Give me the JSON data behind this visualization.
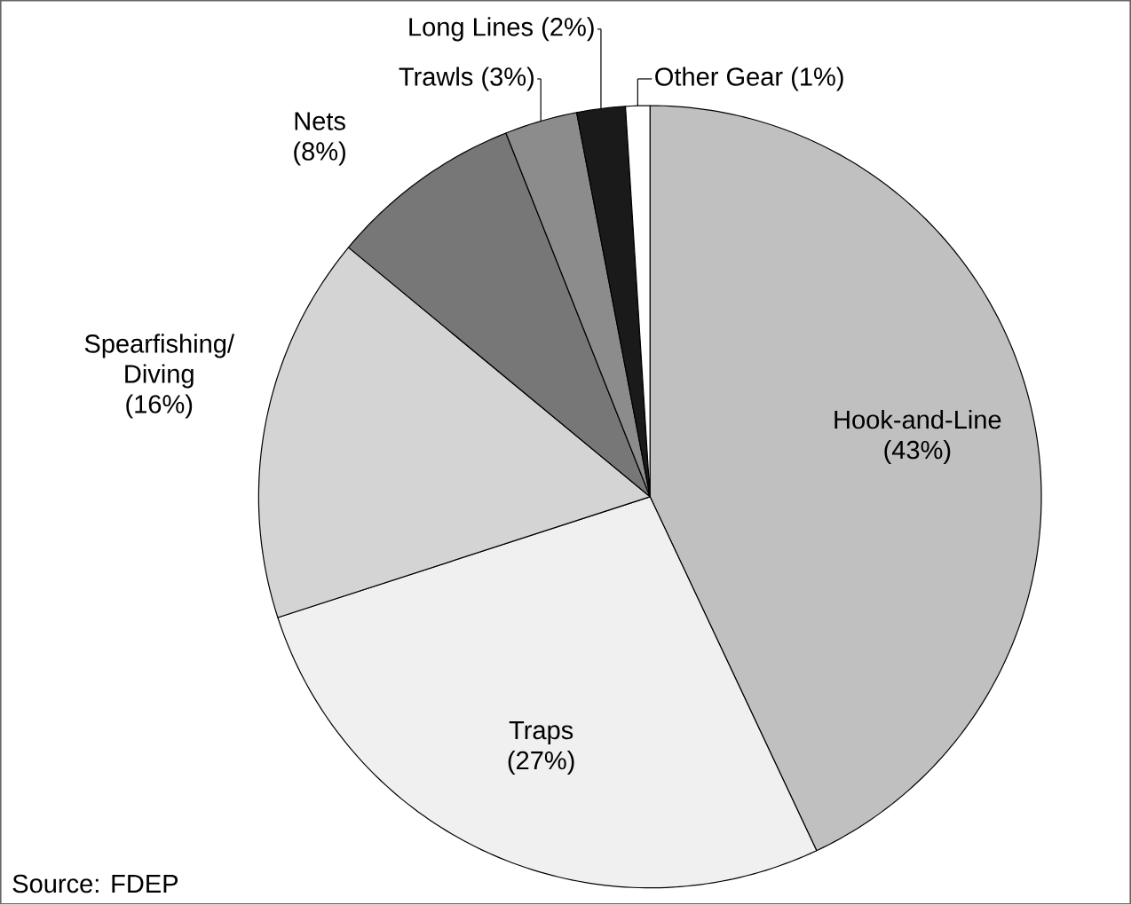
{
  "chart_data": {
    "type": "pie",
    "categories": [
      "Hook-and-Line",
      "Traps",
      "Spearfishing/ Diving",
      "Nets",
      "Trawls",
      "Long Lines",
      "Other Gear"
    ],
    "values": [
      43,
      27,
      16,
      8,
      3,
      2,
      1
    ],
    "value_labels": [
      "(43%)",
      "(27%)",
      "(16%)",
      "(8%)",
      "(3%)",
      "(2%)",
      "(1%)"
    ],
    "colors": [
      "#c0c0c0",
      "#f0f0f0",
      "#d4d4d4",
      "#777777",
      "#8c8c8c",
      "#1a1a1a",
      "#ffffff"
    ],
    "annotations": [
      "Source: FDEP"
    ]
  }
}
